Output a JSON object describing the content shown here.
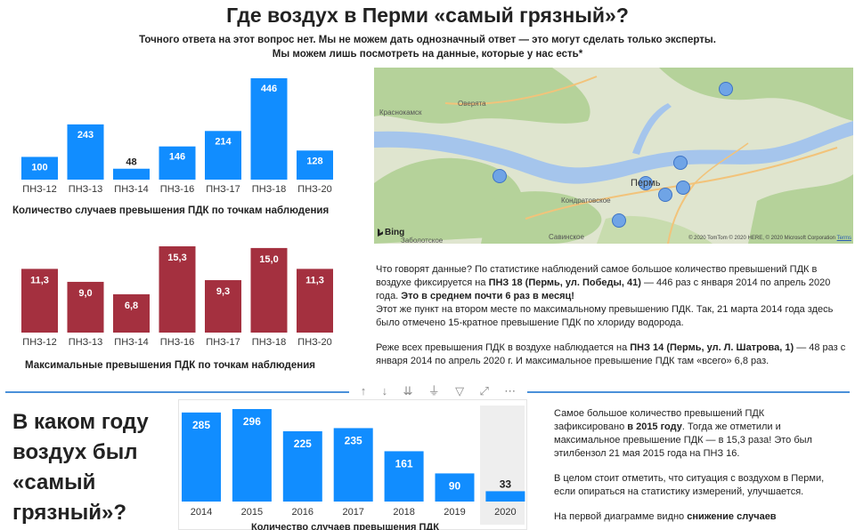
{
  "header": {
    "title": "Где воздух в Перми «самый грязный»?",
    "subtitle_line1": "Точного ответа на этот вопрос нет. Мы не можем дать однозначный ответ — это могут сделать только эксперты.",
    "subtitle_line2": "Мы можем лишь посмотреть на данные, которые у нас есть*"
  },
  "chart_data": [
    {
      "type": "bar",
      "title": "Количество случаев превышения ПДК по точкам наблюдения",
      "categories": [
        "ПНЗ-12",
        "ПНЗ-13",
        "ПНЗ-14",
        "ПНЗ-16",
        "ПНЗ-17",
        "ПНЗ-18",
        "ПНЗ-20"
      ],
      "values": [
        100,
        243,
        48,
        146,
        214,
        446,
        128
      ],
      "value_labels": [
        "100",
        "243",
        "48",
        "146",
        "214",
        "446",
        "128"
      ],
      "ylim": [
        0,
        446
      ],
      "color": "#118dff",
      "grid": false
    },
    {
      "type": "bar",
      "title": "Максимальные превышения ПДК по точкам наблюдения",
      "categories": [
        "ПНЗ-12",
        "ПНЗ-13",
        "ПНЗ-14",
        "ПНЗ-16",
        "ПНЗ-17",
        "ПНЗ-18",
        "ПНЗ-20"
      ],
      "values": [
        11.3,
        9.0,
        6.8,
        15.3,
        9.3,
        15.0,
        11.3
      ],
      "value_labels": [
        "11,3",
        "9,0",
        "6,8",
        "15,3",
        "9,3",
        "15,0",
        "11,3"
      ],
      "ylim": [
        0,
        15.3
      ],
      "color": "#a4303f",
      "grid": false
    },
    {
      "type": "bar",
      "title": "Количество случаев превышения ПДК",
      "categories": [
        "2014",
        "2015",
        "2016",
        "2017",
        "2018",
        "2019",
        "2020"
      ],
      "values": [
        285,
        296,
        225,
        235,
        161,
        90,
        33
      ],
      "value_labels": [
        "285",
        "296",
        "225",
        "235",
        "161",
        "90",
        "33"
      ],
      "ylim": [
        0,
        296
      ],
      "color": "#118dff",
      "highlighted_category": "2020",
      "grid": false
    }
  ],
  "map": {
    "labels": {
      "krasnokamsk": "Краснокамск",
      "overyata": "Оверята",
      "perm": "Пермь",
      "kondratovskoe": "Кондратовское",
      "savinskoe": "Савинское",
      "zaboltskoe": "Заболотское"
    },
    "bing_label": "Bing",
    "copyright": "© 2020 TomTom © 2020 HERE, © 2020 Microsoft Corporation",
    "terms": "Terms",
    "colors": {
      "land": "#dfe5cf",
      "forest": "#b5d29a",
      "river": "#a5c5ec",
      "road": "#f2c37a",
      "marker": "#6fa4e6"
    }
  },
  "text1": {
    "p1_a": "Что говорят данные? По статистике наблюдений самое большое количество превышений ПДК в воздухе фиксируется на ",
    "p1_b": "ПНЗ 18 (Пермь, ул. Победы, 41)",
    "p1_c": " — 446 раз с января 2014 по апрель 2020 года. ",
    "p1_d": "Это в среднем почти 6 раз в месяц!",
    "p2": "Этот же пункт на втором месте по максимальному превышению ПДК. Так, 21 марта 2014 года здесь было отмечено 15-кратное превышение ПДК по хлориду водорода.",
    "p3_a": "Реже всех превышения ПДК в воздухе наблюдается на ",
    "p3_b": "ПНЗ 14 (Пермь, ул. Л. Шатрова, 1)",
    "p3_c": " — 48 раз с января 2014 по апрель 2020 г. И максимальное превышение ПДК там «всего» 6,8 раз."
  },
  "section2": {
    "heading": "В каком году воздух был «самый грязный»?",
    "chart_caption": "Количество случаев превышения ПДК"
  },
  "text2": {
    "p1_a": "Самое большое количество превышений ПДК зафиксировано ",
    "p1_b": "в 2015 году",
    "p1_c": ". Тогда же отметили и максимальное превышение ПДК — в 15,3 раза! Это был этилбензол 21 мая 2015 года на ПНЗ 16.",
    "p2": "В целом стоит отметить, что ситуация с воздухом в Перми, если опираться на статистику измерений, улучшается.",
    "p3_a": "На первой диаграмме видно ",
    "p3_b": "снижение случаев"
  },
  "toolbar": {
    "icons": [
      "arrow-up-icon",
      "arrow-down-icon",
      "double-arrow-down-icon",
      "expand-hierarchy-icon",
      "filter-icon",
      "focus-mode-icon",
      "more-options-icon"
    ],
    "glyphs": [
      "↑",
      "↓",
      "⇊",
      "⏚",
      "▽",
      "⤢",
      "⋯"
    ]
  }
}
